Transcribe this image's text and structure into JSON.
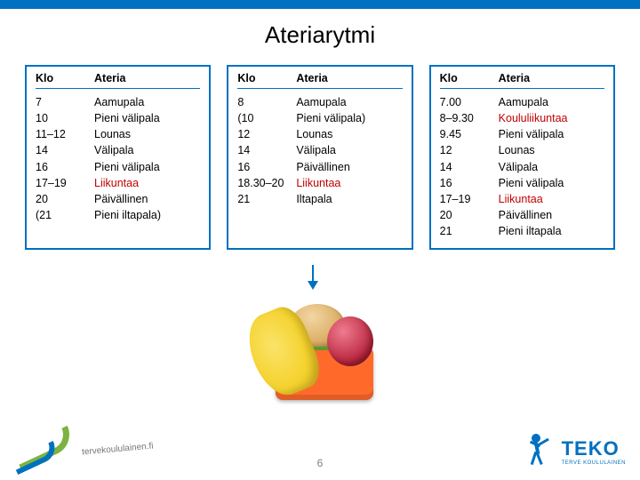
{
  "title": "Ateriarytmi",
  "page_number": "6",
  "columns": {
    "klo": "Klo",
    "ateria": "Ateria"
  },
  "colors": {
    "accent": "#0070c0",
    "highlight": "#c00000",
    "background": "#ffffff"
  },
  "schedules": [
    {
      "rows": [
        {
          "klo": "7",
          "ateria": "Aamupala",
          "red": false
        },
        {
          "klo": "10",
          "ateria": "Pieni välipala",
          "red": false
        },
        {
          "klo": "11–12",
          "ateria": "Lounas",
          "red": false
        },
        {
          "klo": "14",
          "ateria": "Välipala",
          "red": false
        },
        {
          "klo": "16",
          "ateria": "Pieni välipala",
          "red": false
        },
        {
          "klo": "17–19",
          "ateria": "Liikuntaa",
          "red": true
        },
        {
          "klo": "20",
          "ateria": "Päivällinen",
          "red": false
        },
        {
          "klo": "(21",
          "ateria": "Pieni iltapala)",
          "red": false
        }
      ]
    },
    {
      "rows": [
        {
          "klo": "8",
          "ateria": "Aamupala",
          "red": false
        },
        {
          "klo": "(10",
          "ateria": "Pieni välipala)",
          "red": false
        },
        {
          "klo": "12",
          "ateria": "Lounas",
          "red": false
        },
        {
          "klo": "14",
          "ateria": "Välipala",
          "red": false
        },
        {
          "klo": "16",
          "ateria": "Päivällinen",
          "red": false
        },
        {
          "klo": "18.30–20",
          "ateria": "Liikuntaa",
          "red": true
        },
        {
          "klo": "21",
          "ateria": "Iltapala",
          "red": false
        }
      ]
    },
    {
      "rows": [
        {
          "klo": "7.00",
          "ateria": "Aamupala",
          "red": false
        },
        {
          "klo": "8–9.30",
          "ateria": "Koululiikuntaa",
          "red": true
        },
        {
          "klo": "9.45",
          "ateria": "Pieni välipala",
          "red": false
        },
        {
          "klo": "12",
          "ateria": "Lounas",
          "red": false
        },
        {
          "klo": "14",
          "ateria": "Välipala",
          "red": false
        },
        {
          "klo": "16",
          "ateria": "Pieni välipala",
          "red": false
        },
        {
          "klo": "17–19",
          "ateria": "Liikuntaa",
          "red": true
        },
        {
          "klo": "20",
          "ateria": "Päivällinen",
          "red": false
        },
        {
          "klo": "21",
          "ateria": "Pieni iltapala",
          "red": false
        }
      ]
    }
  ],
  "logos": {
    "left_text": "tervekoululainen.fi",
    "right_text": "TEKO",
    "right_sub": "TERVE KOULULAINEN"
  }
}
